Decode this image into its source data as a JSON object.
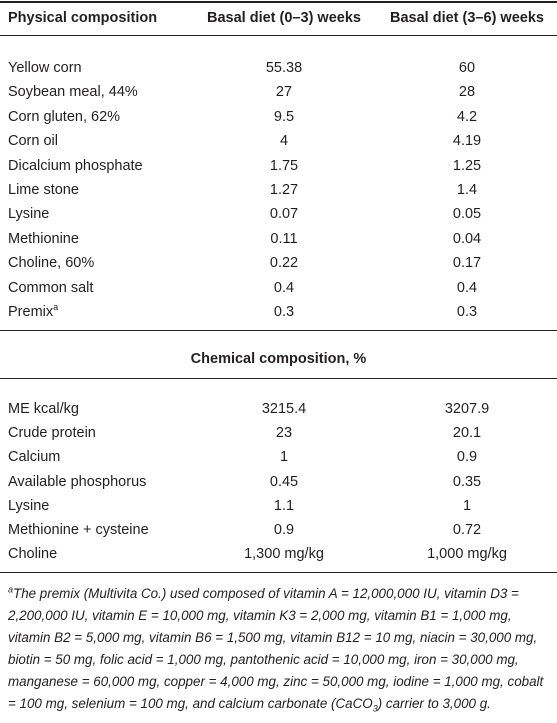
{
  "table": {
    "header": [
      "Physical composition",
      "Basal diet (0–3) weeks",
      "Basal diet (3–6) weeks"
    ],
    "rows": [
      [
        "Yellow corn",
        "55.38",
        "60"
      ],
      [
        "Soybean meal, 44%",
        "27",
        "28"
      ],
      [
        "Corn gluten, 62%",
        "9.5",
        "4.2"
      ],
      [
        "Corn oil",
        "4",
        "4.19"
      ],
      [
        "Dicalcium phosphate",
        "1.75",
        "1.25"
      ],
      [
        "Lime stone",
        "1.27",
        "1.4"
      ],
      [
        "Lysine",
        "0.07",
        "0.05"
      ],
      [
        "Methionine",
        "0.11",
        "0.04"
      ],
      [
        "Choline, 60%",
        "0.22",
        "0.17"
      ],
      [
        "Common salt",
        "0.4",
        "0.4"
      ],
      [
        "Premix",
        "0.3",
        "0.3"
      ]
    ],
    "premix_marker": "a",
    "section_title": "Chemical composition, %",
    "chemical_rows": [
      [
        "ME kcal/kg",
        "3215.4",
        "3207.9"
      ],
      [
        "Crude protein",
        "23",
        "20.1"
      ],
      [
        "Calcium",
        "1",
        "0.9"
      ],
      [
        "Available phosphorus",
        "0.45",
        "0.35"
      ],
      [
        "Lysine",
        "1.1",
        "1"
      ],
      [
        "Methionine + cysteine",
        "0.9",
        "0.72"
      ],
      [
        "Choline",
        "1,300 mg/kg",
        "1,000 mg/kg"
      ]
    ],
    "footnote": {
      "marker": "a",
      "text_before": "The premix (Multivita Co.) used composed of vitamin A = 12,000,000 IU, vitamin D3 = 2,200,000 IU, vitamin E = 10,000 mg, vitamin K3 = 2,000 mg, vitamin B1 = 1,000 mg, vitamin B2 = 5,000 mg, vitamin B6 = 1,500 mg, vitamin B12 = 10 mg, niacin = 30,000 mg, biotin = 50 mg, folic acid = 1,000 mg, pantothenic acid = 10,000 mg, iron = 30,000 mg, manganese = 60,000 mg, copper = 4,000 mg, zinc = 50,000 mg, iodine = 1,000 mg, cobalt = 100 mg, selenium = 100 mg, and calcium carbonate (CaCO",
      "subscript": "3",
      "text_after": ") carrier to 3,000 g."
    }
  }
}
